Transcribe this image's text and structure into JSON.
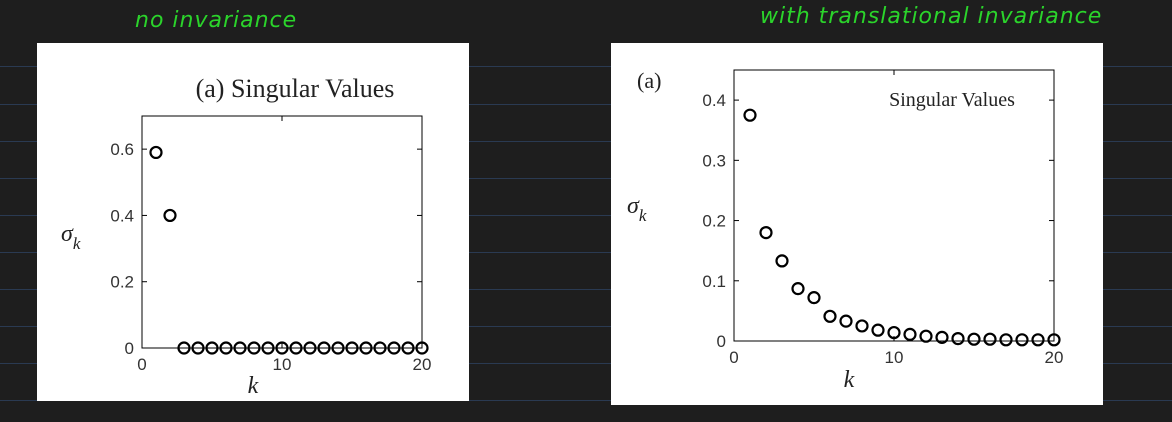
{
  "annotations": {
    "left_note": "no invariance",
    "right_note": "with translational invariance"
  },
  "colors": {
    "background": "#1e1e1e",
    "ruled_lines": "#2a3a52",
    "annotation": "#2bd42b",
    "panel": "#ffffff",
    "marker": "#000000"
  },
  "chart_data": [
    {
      "type": "scatter",
      "panel_label": "",
      "title": "(a) Singular Values",
      "xlabel": "k",
      "ylabel": "σ_k",
      "xlim": [
        0,
        20
      ],
      "ylim": [
        0,
        0.7
      ],
      "xticks": [
        0,
        10,
        20
      ],
      "yticks": [
        0,
        0.2,
        0.4,
        0.6
      ],
      "xtick_labels": [
        "0",
        "10",
        "20"
      ],
      "ytick_labels": [
        "0",
        "0.2",
        "0.4",
        "0.6"
      ],
      "grid": false,
      "marker": "open-circle",
      "series": [
        {
          "x": [
            1,
            2,
            3,
            4,
            5,
            6,
            7,
            8,
            9,
            10,
            11,
            12,
            13,
            14,
            15,
            16,
            17,
            18,
            19,
            20
          ],
          "y": [
            0.59,
            0.4,
            0,
            0,
            0,
            0,
            0,
            0,
            0,
            0,
            0,
            0,
            0,
            0,
            0,
            0,
            0,
            0,
            0,
            0
          ]
        }
      ]
    },
    {
      "type": "scatter",
      "panel_label": "(a)",
      "title": "Singular Values",
      "xlabel": "k",
      "ylabel": "σ_k",
      "xlim": [
        0,
        20
      ],
      "ylim": [
        0,
        0.45
      ],
      "xticks": [
        0,
        10,
        20
      ],
      "yticks": [
        0,
        0.1,
        0.2,
        0.3,
        0.4
      ],
      "xtick_labels": [
        "0",
        "10",
        "20"
      ],
      "ytick_labels": [
        "0",
        "0.1",
        "0.2",
        "0.3",
        "0.4"
      ],
      "grid": false,
      "marker": "open-circle",
      "series": [
        {
          "x": [
            1,
            2,
            3,
            4,
            5,
            6,
            7,
            8,
            9,
            10,
            11,
            12,
            13,
            14,
            15,
            16,
            17,
            18,
            19,
            20
          ],
          "y": [
            0.375,
            0.18,
            0.133,
            0.087,
            0.072,
            0.041,
            0.033,
            0.025,
            0.018,
            0.014,
            0.011,
            0.008,
            0.006,
            0.004,
            0.003,
            0.003,
            0.002,
            0.002,
            0.002,
            0.002
          ]
        }
      ]
    }
  ]
}
